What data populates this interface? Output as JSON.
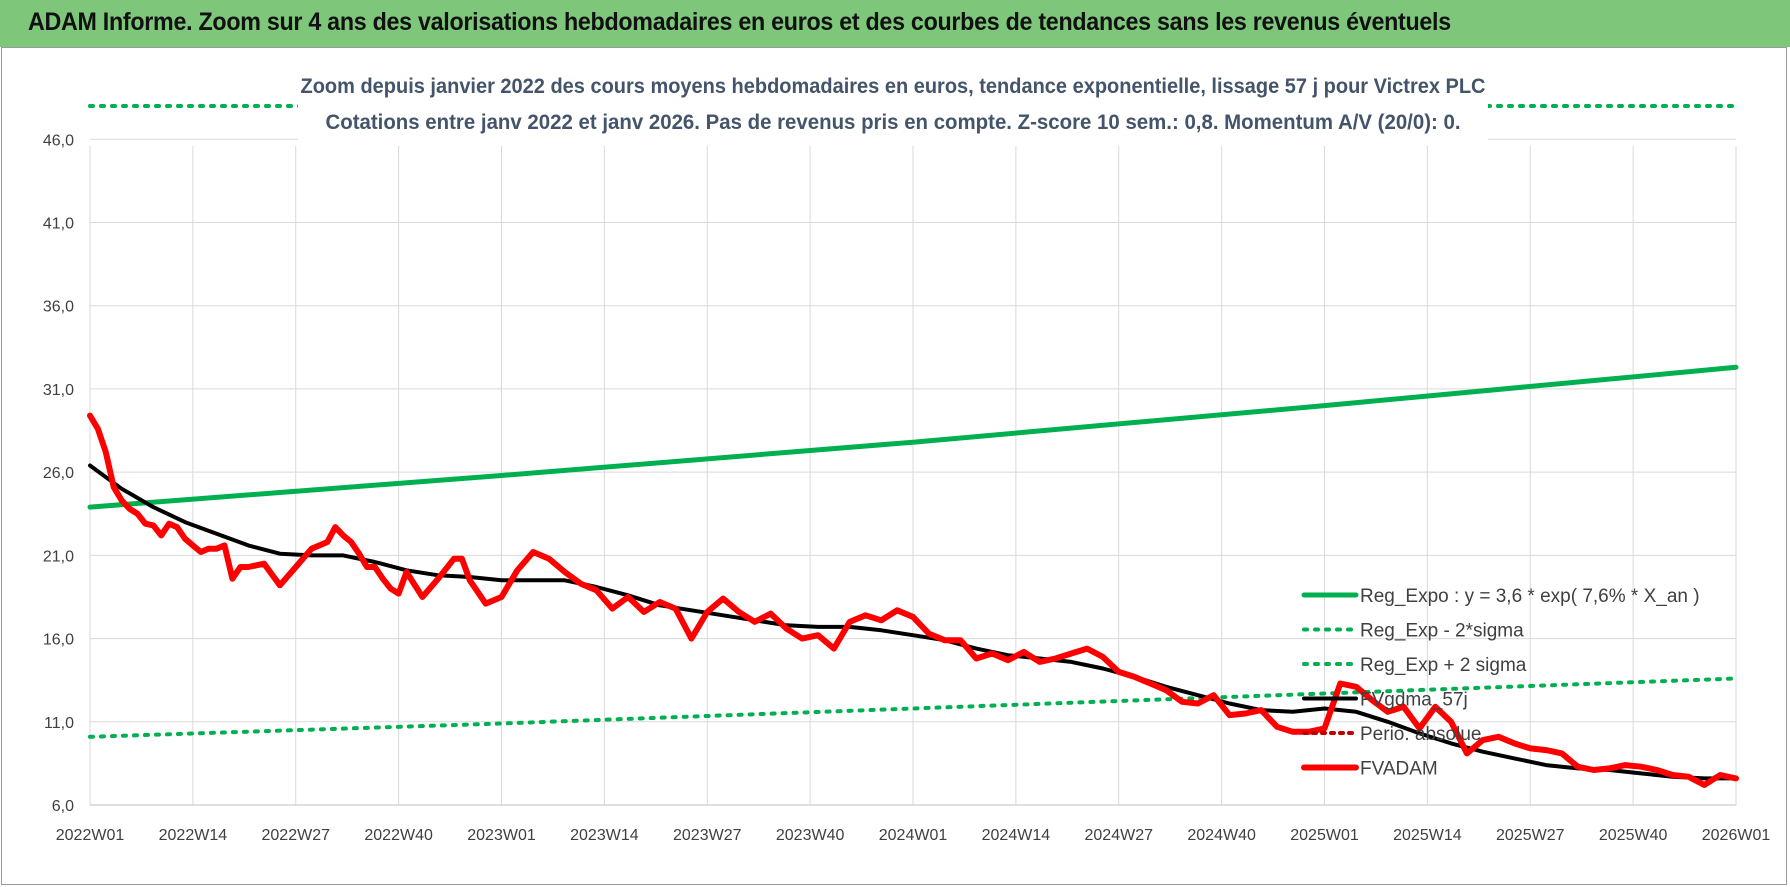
{
  "header": {
    "title": "ADAM Informe. Zoom sur 4 ans des valorisations hebdomadaires en euros et des courbes de tendances sans les revenus éventuels"
  },
  "chart_data": {
    "type": "line",
    "title_line1": "Zoom depuis janvier 2022 des cours moyens hebdomadaires en euros, tendance exponentielle, lissage 57 j pour Victrex PLC",
    "title_line2": "Cotations entre janv 2022 et janv 2026. Pas de revenus pris en compte. Z-score 10 sem.: 0,8. Momentum A/V (20/0): 0.",
    "ylim": [
      6,
      48
    ],
    "yticks": [
      "6,0",
      "11,0",
      "16,0",
      "21,0",
      "26,0",
      "31,0",
      "36,0",
      "41,0",
      "46,0"
    ],
    "ytick_values": [
      6,
      11,
      16,
      21,
      26,
      31,
      36,
      41,
      46
    ],
    "xticks": [
      "2022W01",
      "2022W14",
      "2022W27",
      "2022W40",
      "2023W01",
      "2023W14",
      "2023W27",
      "2023W40",
      "2024W01",
      "2024W14",
      "2024W27",
      "2024W40",
      "2025W01",
      "2025W14",
      "2025W27",
      "2025W40",
      "2026W01"
    ],
    "x_range_weeks": [
      0,
      208
    ],
    "grid": true,
    "legend_position": "right",
    "colors": {
      "reg_expo": "#00b050",
      "sigma": "#00b050",
      "fvgdma": "#000000",
      "perio": "#c00000",
      "fvadam": "#ff0000",
      "grid": "#d9d9d9"
    },
    "series": [
      {
        "name": "Reg_Expo : y = 3,6 * exp( 7,6% *  X_an )",
        "style": "solid",
        "x": [
          0,
          52,
          104,
          156,
          208
        ],
        "values": [
          23.9,
          25.8,
          27.8,
          30.0,
          32.3
        ]
      },
      {
        "name": "Reg_Exp - 2*sigma",
        "style": "dotted",
        "x": [
          0,
          208
        ],
        "values": [
          48.0,
          48.0
        ]
      },
      {
        "name": "Reg_Exp + 2 sigma",
        "style": "dotted",
        "x": [
          0,
          52,
          104,
          156,
          208
        ],
        "values": [
          10.1,
          10.9,
          11.8,
          12.7,
          13.6
        ]
      },
      {
        "name": "FVgdma_57j",
        "style": "solid",
        "x": [
          0,
          4,
          8,
          12,
          16,
          20,
          24,
          28,
          32,
          36,
          40,
          44,
          48,
          52,
          56,
          60,
          64,
          68,
          72,
          76,
          80,
          84,
          88,
          92,
          96,
          100,
          104,
          108,
          112,
          116,
          120,
          124,
          128,
          132,
          136,
          140,
          144,
          148,
          152,
          156,
          160,
          164,
          168,
          172,
          176,
          180,
          184,
          188,
          192,
          196,
          200,
          204,
          208
        ],
        "values": [
          26.4,
          25.0,
          23.9,
          23.0,
          22.3,
          21.6,
          21.1,
          21.0,
          21.0,
          20.6,
          20.1,
          19.8,
          19.7,
          19.5,
          19.5,
          19.5,
          19.1,
          18.6,
          18.0,
          17.7,
          17.4,
          17.1,
          16.8,
          16.7,
          16.7,
          16.5,
          16.2,
          15.9,
          15.4,
          15.0,
          14.8,
          14.6,
          14.2,
          13.7,
          13.1,
          12.6,
          12.1,
          11.7,
          11.6,
          11.8,
          11.6,
          11.0,
          10.3,
          9.7,
          9.2,
          8.8,
          8.4,
          8.2,
          8.1,
          7.9,
          7.7,
          7.6,
          7.6
        ]
      },
      {
        "name": "Perio. absolue",
        "style": "dotted",
        "x": [],
        "values": []
      },
      {
        "name": "FVADAM",
        "style": "solid",
        "x": [
          0,
          1,
          2,
          3,
          4,
          5,
          6,
          7,
          8,
          9,
          10,
          11,
          12,
          13,
          14,
          15,
          16,
          17,
          18,
          19,
          20,
          22,
          24,
          26,
          28,
          29,
          30,
          31,
          32,
          33,
          34,
          35,
          36,
          37,
          38,
          39,
          40,
          42,
          44,
          46,
          47,
          48,
          50,
          52,
          54,
          56,
          58,
          60,
          62,
          64,
          66,
          68,
          70,
          72,
          74,
          76,
          78,
          80,
          82,
          84,
          86,
          88,
          90,
          92,
          94,
          96,
          98,
          100,
          102,
          104,
          106,
          108,
          110,
          112,
          114,
          116,
          118,
          120,
          122,
          124,
          126,
          128,
          130,
          132,
          134,
          136,
          138,
          140,
          142,
          144,
          146,
          148,
          150,
          152,
          154,
          156,
          158,
          160,
          162,
          164,
          166,
          168,
          170,
          172,
          174,
          176,
          178,
          180,
          182,
          184,
          186,
          188,
          190,
          192,
          194,
          196,
          198,
          200,
          202,
          204,
          206,
          208
        ],
        "values": [
          29.4,
          28.6,
          27.2,
          25.1,
          24.3,
          23.8,
          23.5,
          22.9,
          22.8,
          22.2,
          22.9,
          22.7,
          22.0,
          21.6,
          21.2,
          21.4,
          21.4,
          21.6,
          19.6,
          20.3,
          20.3,
          20.5,
          19.2,
          20.3,
          21.4,
          21.6,
          21.8,
          22.7,
          22.2,
          21.8,
          21.1,
          20.3,
          20.3,
          19.6,
          19.0,
          18.7,
          20.0,
          18.5,
          19.6,
          20.8,
          20.8,
          19.5,
          18.1,
          18.5,
          20.1,
          21.2,
          20.8,
          20.0,
          19.3,
          18.9,
          17.8,
          18.5,
          17.6,
          18.2,
          17.8,
          16.0,
          17.6,
          18.4,
          17.6,
          17.0,
          17.5,
          16.6,
          16.0,
          16.2,
          15.4,
          17.0,
          17.4,
          17.1,
          17.7,
          17.3,
          16.3,
          15.9,
          15.9,
          14.8,
          15.1,
          14.7,
          15.2,
          14.6,
          14.8,
          15.1,
          15.4,
          14.9,
          14.0,
          13.7,
          13.3,
          12.9,
          12.2,
          12.1,
          12.6,
          11.4,
          11.5,
          11.7,
          10.7,
          10.4,
          10.4,
          10.6,
          13.3,
          13.1,
          12.3,
          11.6,
          11.9,
          10.6,
          11.9,
          11.0,
          9.1,
          9.9,
          10.1,
          9.7,
          9.4,
          9.3,
          9.1,
          8.3,
          8.1,
          8.2,
          8.4,
          8.3,
          8.1,
          7.8,
          7.7,
          7.2,
          7.8,
          7.6
        ]
      }
    ]
  }
}
